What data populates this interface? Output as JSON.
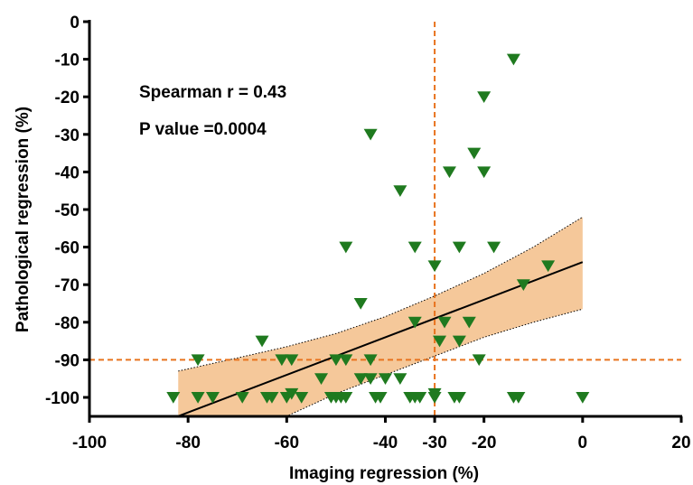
{
  "chart_data": {
    "type": "scatter",
    "title": "",
    "xlabel": "Imaging regression (%)",
    "ylabel": "Pathological regression (%)",
    "xlim": [
      -100,
      20
    ],
    "ylim": [
      -105,
      0
    ],
    "x_ticks": [
      -100,
      -80,
      -60,
      -40,
      -30,
      -20,
      0,
      20
    ],
    "y_ticks": [
      0,
      -10,
      -20,
      -30,
      -40,
      -50,
      -60,
      -70,
      -80,
      -90,
      -100
    ],
    "annotations": [
      "Spearman r = 0.43",
      "P value =0.0004"
    ],
    "marker": "triangle-down",
    "marker_color": "#1f7a1f",
    "threshold_lines": {
      "x": -30,
      "y": -90,
      "color": "#e8731e",
      "style": "dashed"
    },
    "fit_line": {
      "x": [
        -82,
        0
      ],
      "y": [
        -105,
        -64
      ],
      "color": "#000000"
    },
    "confidence_band": {
      "color": "#f5c89a",
      "x": [
        -82,
        -70,
        -60,
        -50,
        -40,
        -30,
        -20,
        -10,
        0
      ],
      "upper": [
        -93,
        -89.5,
        -86.5,
        -83,
        -78.5,
        -73,
        -67,
        -60,
        -52
      ],
      "lower": [
        -110,
        -108,
        -105,
        -99,
        -94,
        -89,
        -84,
        -80,
        -76.5
      ]
    },
    "points": [
      [
        -83,
        -100
      ],
      [
        -78,
        -90
      ],
      [
        -78,
        -100
      ],
      [
        -75,
        -100
      ],
      [
        -69,
        -100
      ],
      [
        -65,
        -85
      ],
      [
        -64,
        -100
      ],
      [
        -63,
        -100
      ],
      [
        -61,
        -90
      ],
      [
        -60,
        -100
      ],
      [
        -59,
        -90
      ],
      [
        -59,
        -99
      ],
      [
        -57,
        -100
      ],
      [
        -53,
        -95
      ],
      [
        -51,
        -100
      ],
      [
        -50,
        -90
      ],
      [
        -50,
        -100
      ],
      [
        -49,
        -100
      ],
      [
        -48,
        -60
      ],
      [
        -48,
        -90
      ],
      [
        -48,
        -100
      ],
      [
        -45,
        -75
      ],
      [
        -45,
        -95
      ],
      [
        -43,
        -30
      ],
      [
        -43,
        -90
      ],
      [
        -43,
        -95
      ],
      [
        -42,
        -100
      ],
      [
        -41,
        -100
      ],
      [
        -40,
        -95
      ],
      [
        -37,
        -45
      ],
      [
        -37,
        -95
      ],
      [
        -35,
        -100
      ],
      [
        -34,
        -60
      ],
      [
        -34,
        -80
      ],
      [
        -34,
        -100
      ],
      [
        -33,
        -100
      ],
      [
        -30,
        -65
      ],
      [
        -30,
        -99
      ],
      [
        -30,
        -100
      ],
      [
        -29,
        -85
      ],
      [
        -28,
        -80
      ],
      [
        -27,
        -40
      ],
      [
        -26,
        -100
      ],
      [
        -25,
        -60
      ],
      [
        -25,
        -85
      ],
      [
        -25,
        -100
      ],
      [
        -23,
        -80
      ],
      [
        -22,
        -35
      ],
      [
        -21,
        -90
      ],
      [
        -20,
        -20
      ],
      [
        -20,
        -40
      ],
      [
        -18,
        -60
      ],
      [
        -14,
        -10
      ],
      [
        -14,
        -100
      ],
      [
        -13,
        -100
      ],
      [
        -12,
        -70
      ],
      [
        -7,
        -65
      ],
      [
        0,
        -100
      ]
    ]
  }
}
